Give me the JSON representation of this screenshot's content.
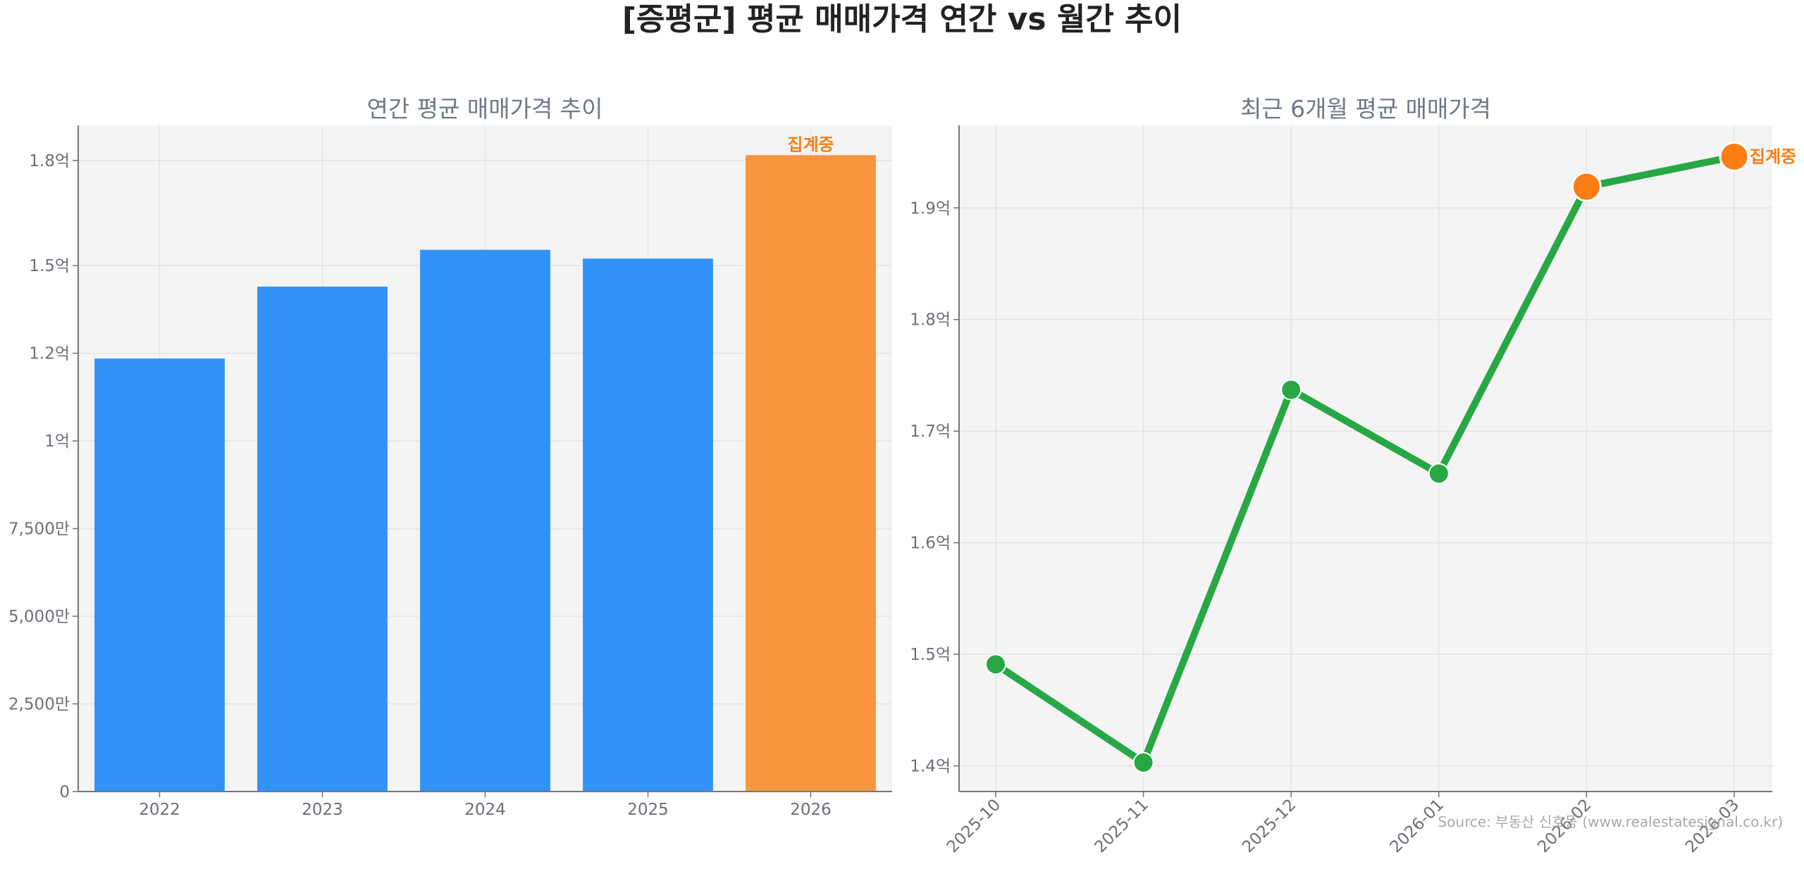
{
  "title": "[증평군] 평균 매매가격 연간 vs 월간 추이",
  "source": "Source: 부동산 신호등 (www.realestatesignal.co.kr)",
  "colors": {
    "bar": "#3193f9",
    "bar_highlight": "#f7963e",
    "line": "#28a745",
    "highlight": "#fb7d14",
    "plot_bg": "#f4f4f4",
    "grid": "#e3e3e3"
  },
  "chart_data": [
    {
      "type": "bar",
      "title": "연간 평균 매매가격 추이",
      "categories": [
        "2022",
        "2023",
        "2024",
        "2025",
        "2026"
      ],
      "values": [
        123500000,
        144000000,
        154500000,
        152000000,
        181500000
      ],
      "highlight_index": 4,
      "highlight_label": "집계중",
      "ylim": [
        0,
        190000000
      ],
      "yticks": [
        0,
        25000000,
        50000000,
        75000000,
        100000000,
        125000000,
        150000000,
        180000000
      ],
      "ytick_labels": [
        "0",
        "2,500만",
        "5,000만",
        "7,500만",
        "1억",
        "1.2억",
        "1.5억",
        "1.8억"
      ],
      "grid": true
    },
    {
      "type": "line",
      "title": "최근 6개월 평균 매매가격",
      "categories": [
        "2025-10",
        "2025-11",
        "2025-12",
        "2026-01",
        "2026-02",
        "2026-03"
      ],
      "values": [
        149100000,
        140300000,
        173700000,
        166200000,
        191900000,
        194600000
      ],
      "highlight_indices": [
        4,
        5
      ],
      "highlight_label": "집계중",
      "ylim": [
        137700000,
        197400000
      ],
      "yticks": [
        140000000,
        150000000,
        160000000,
        170000000,
        180000000,
        190000000
      ],
      "ytick_labels": [
        "1.4억",
        "1.5억",
        "1.6억",
        "1.7억",
        "1.8억",
        "1.9억"
      ],
      "grid": true
    }
  ]
}
